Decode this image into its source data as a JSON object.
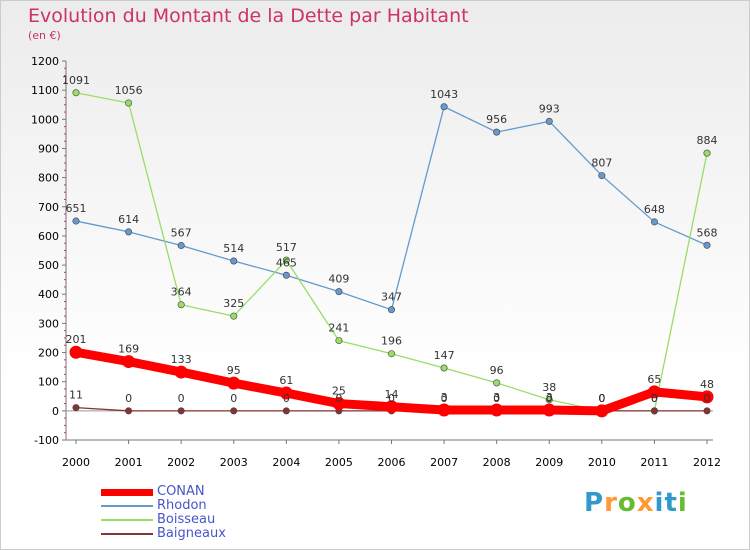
{
  "header": {
    "title": "Evolution du Montant de la Dette par Habitant",
    "unit": "(en €)"
  },
  "logo": {
    "text": "Proxiti",
    "colors": [
      "#3399cc",
      "#ff9933",
      "#66bb33",
      "#ff9933",
      "#3399cc",
      "#3399cc",
      "#66bb33"
    ]
  },
  "colors": {
    "title": "#cc3366",
    "legend_text": "#4455cc"
  },
  "chart_data": {
    "type": "line",
    "x": [
      "2000",
      "2001",
      "2002",
      "2003",
      "2004",
      "2005",
      "2006",
      "2007",
      "2008",
      "2009",
      "2010",
      "2011",
      "2012"
    ],
    "ylim": [
      -100,
      1200
    ],
    "yticks": [
      -100,
      0,
      100,
      200,
      300,
      400,
      500,
      600,
      700,
      800,
      900,
      1000,
      1100,
      1200
    ],
    "grid": false,
    "legend_position": "bottom-left",
    "series": [
      {
        "name": "CONAN",
        "color": "#ff0000",
        "thick": true,
        "values": [
          201,
          169,
          133,
          95,
          61,
          25,
          14,
          3,
          3,
          3,
          0,
          65,
          48
        ],
        "labels": [
          "201",
          "169",
          "133",
          "95",
          "61",
          "25",
          "14",
          "3",
          "3",
          "3",
          "0",
          "65",
          "48"
        ]
      },
      {
        "name": "Rhodon",
        "color": "#6699cc",
        "thick": false,
        "values": [
          651,
          614,
          567,
          514,
          465,
          409,
          347,
          1043,
          956,
          993,
          807,
          648,
          568
        ],
        "labels": [
          "651",
          "614",
          "567",
          "514",
          "465",
          "409",
          "347",
          "1043",
          "956",
          "993",
          "807",
          "648",
          "568"
        ]
      },
      {
        "name": "Boisseau",
        "color": "#99dd66",
        "thick": false,
        "values": [
          1091,
          1056,
          364,
          325,
          517,
          241,
          196,
          147,
          96,
          38,
          0,
          0,
          884
        ],
        "labels": [
          "1091",
          "1056",
          "364",
          "325",
          "517",
          "241",
          "196",
          "147",
          "96",
          "38",
          "0",
          "0",
          "884"
        ]
      },
      {
        "name": "Baigneaux",
        "color": "#883333",
        "thick": false,
        "values": [
          11,
          0,
          0,
          0,
          0,
          0,
          0,
          0,
          0,
          0,
          0,
          0,
          0
        ],
        "labels": [
          "11",
          "0",
          "0",
          "0",
          "0",
          "0",
          "0",
          "0",
          "0",
          "0",
          "0",
          "0",
          "0"
        ]
      }
    ]
  }
}
